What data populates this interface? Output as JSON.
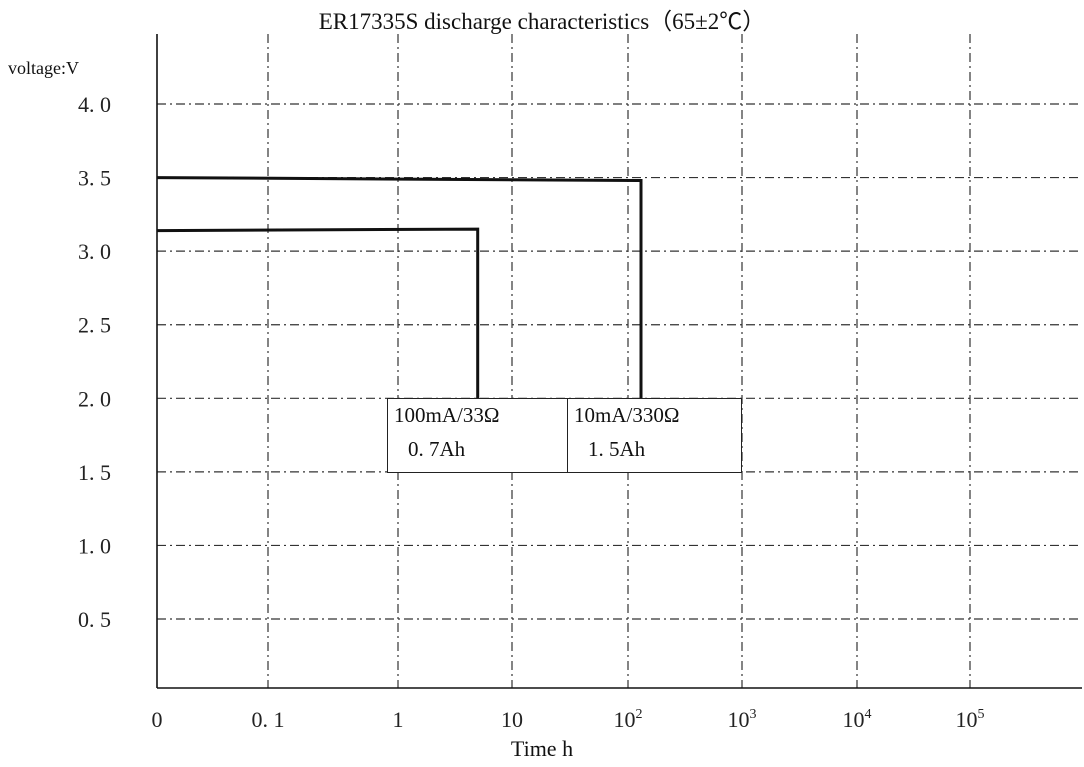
{
  "chart_data": {
    "type": "line",
    "title": "ER17335S discharge characteristics（65±2℃）",
    "ylabel": "voltage:V",
    "xlabel": "Time h",
    "ylim": [
      0,
      4.4
    ],
    "y_ticks": [
      "4. 0",
      "3. 5",
      "3. 0",
      "2. 5",
      "2. 0",
      "1. 5",
      "1. 0",
      "0. 5"
    ],
    "y_tick_values": [
      4.0,
      3.5,
      3.0,
      2.5,
      2.0,
      1.5,
      1.0,
      0.5
    ],
    "x_scale": "log",
    "x_tick_values": [
      0.01,
      0.1,
      1,
      10,
      100,
      1000,
      10000,
      100000
    ],
    "x_ticks": [
      {
        "base": "0",
        "exp": ""
      },
      {
        "base": "0. 1",
        "exp": ""
      },
      {
        "base": "1",
        "exp": ""
      },
      {
        "base": "10",
        "exp": ""
      },
      {
        "base": "10",
        "exp": "2"
      },
      {
        "base": "10",
        "exp": "3"
      },
      {
        "base": "10",
        "exp": "4"
      },
      {
        "base": "10",
        "exp": "5"
      }
    ],
    "grid": true,
    "series": [
      {
        "name": "100mA/33Ω",
        "x": [
          0.01,
          5,
          5
        ],
        "y": [
          3.14,
          3.15,
          2.0
        ]
      },
      {
        "name": "10mA/330Ω",
        "x": [
          0.01,
          130,
          130
        ],
        "y": [
          3.5,
          3.48,
          2.0
        ]
      }
    ],
    "annotations": [
      {
        "line1": "100mA/33Ω",
        "line2": "0. 7Ah"
      },
      {
        "line1": "10mA/330Ω",
        "line2": "1. 5Ah"
      }
    ]
  }
}
